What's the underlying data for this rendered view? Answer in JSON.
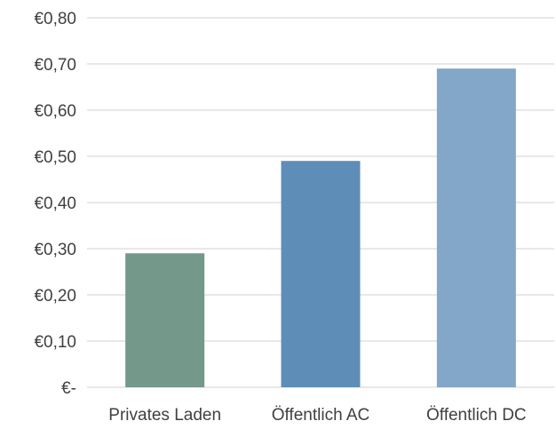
{
  "chart_data": {
    "type": "bar",
    "categories": [
      "Privates Laden",
      "Öffentlich AC",
      "Öffentlich DC"
    ],
    "values": [
      0.29,
      0.49,
      0.69
    ],
    "bar_colors": [
      "#74988a",
      "#5e8db8",
      "#82a7c8"
    ],
    "title": "",
    "xlabel": "",
    "ylabel": "",
    "ylim": [
      0,
      0.8
    ],
    "y_ticks": [
      0,
      0.1,
      0.2,
      0.3,
      0.4,
      0.5,
      0.6,
      0.7,
      0.8
    ],
    "y_tick_labels": [
      "€-",
      "€0,10",
      "€0,20",
      "€0,30",
      "€0,40",
      "€0,50",
      "€0,60",
      "€0,70",
      "€0,80"
    ],
    "grid": true,
    "legend": "none",
    "gridline_color": "#d9d9d9",
    "text_color": "#404040"
  }
}
